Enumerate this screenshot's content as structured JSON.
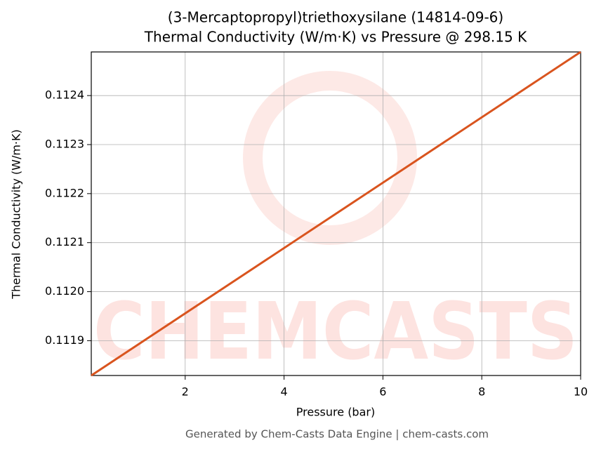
{
  "chart_data": {
    "type": "line",
    "title": "(3-Mercaptopropyl)triethoxysilane (14814-09-6)",
    "subtitle": "Thermal Conductivity (W/m·K) vs Pressure @ 298.15 K",
    "x_label": "Pressure (bar)",
    "y_label": "Thermal Conductivity (W/m·K)",
    "watermark": "CHEMCASTS",
    "footer": "Generated by Chem-Casts Data Engine | chem-casts.com",
    "x": [
      0.1,
      10
    ],
    "series": [
      {
        "name": "Thermal Conductivity",
        "color": "#d9541e",
        "values": [
          0.111829,
          0.112489
        ]
      }
    ],
    "xlim": [
      0.1,
      10
    ],
    "ylim": [
      0.111829,
      0.112489
    ],
    "xticks": [
      2,
      4,
      6,
      8,
      10
    ],
    "yticks": [
      0.1119,
      {
        "value": 0.112,
        "label": "0.1120"
      },
      0.1121,
      0.1122,
      0.1123,
      0.1124
    ],
    "grid": true
  }
}
